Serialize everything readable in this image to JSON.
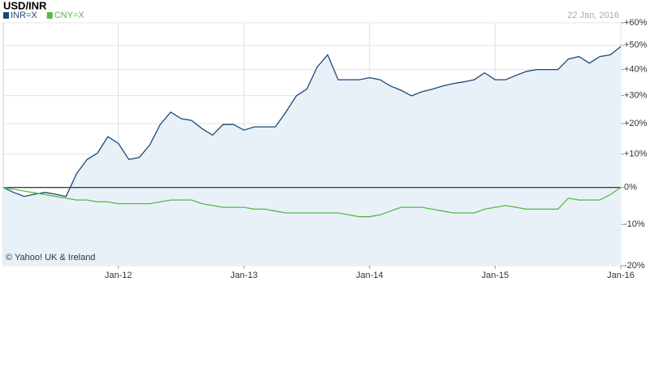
{
  "chart_data": {
    "type": "line",
    "title": "USD/INR",
    "date_label": "22 Jan, 2016",
    "credit": "© Yahoo! UK & Ireland",
    "log_scale": true,
    "grid": true,
    "legend": "top-left",
    "x": [
      null,
      null,
      null,
      null,
      null,
      null,
      null,
      null,
      null,
      null,
      null,
      "Jan-12",
      null,
      null,
      null,
      null,
      null,
      null,
      null,
      null,
      null,
      null,
      null,
      "Jan-13",
      null,
      null,
      null,
      null,
      null,
      null,
      null,
      null,
      null,
      null,
      null,
      "Jan-14",
      null,
      null,
      null,
      null,
      null,
      null,
      null,
      null,
      null,
      null,
      null,
      "Jan-15",
      null,
      null,
      null,
      null,
      null,
      null,
      null,
      null,
      null,
      null,
      null,
      "Jan-16"
    ],
    "ylim": [
      -20,
      60
    ],
    "yticks": [
      {
        "value": -20,
        "label": "-20%"
      },
      {
        "value": -10,
        "label": "-10%"
      },
      {
        "value": 0,
        "label": "0%"
      },
      {
        "value": 10,
        "label": "+10%"
      },
      {
        "value": 20,
        "label": "+20%"
      },
      {
        "value": 30,
        "label": "+30%"
      },
      {
        "value": 40,
        "label": "+40%"
      },
      {
        "value": 50,
        "label": "+50%"
      },
      {
        "value": 60,
        "label": "+60%"
      }
    ],
    "series": [
      {
        "name": "INR=X",
        "color": "#1b4a78",
        "values": [
          0,
          -1.4,
          -2.5,
          -1.9,
          -1.4,
          -1.9,
          -2.5,
          4,
          8.3,
          10.3,
          15.6,
          13.4,
          8.3,
          9,
          12.9,
          19.7,
          24,
          21.7,
          21.1,
          18.3,
          16.1,
          19.7,
          19.7,
          17.8,
          18.9,
          18.9,
          18.9,
          24,
          29.9,
          32.4,
          41,
          46,
          36,
          36,
          36,
          36.8,
          36,
          33.6,
          32,
          29.9,
          31.4,
          32.4,
          33.6,
          34.5,
          35.2,
          36,
          38.7,
          36,
          36,
          37.7,
          39.3,
          40,
          40,
          40,
          44.3,
          45.3,
          42.6,
          45.3,
          46,
          49.5
        ]
      },
      {
        "name": "CNY=X",
        "color": "#55b947",
        "values": [
          0,
          -0.5,
          -1,
          -1.5,
          -2,
          -2.5,
          -3,
          -3.5,
          -3.5,
          -4,
          -4,
          -4.5,
          -4.5,
          -4.5,
          -4.5,
          -4,
          -3.5,
          -3.5,
          -3.5,
          -4.5,
          -5,
          -5.5,
          -5.5,
          -5.5,
          -6,
          -6,
          -6.5,
          -7,
          -7,
          -7,
          -7,
          -7,
          -7,
          -7.5,
          -8,
          -8,
          -7.5,
          -6.5,
          -5.5,
          -5.5,
          -5.5,
          -6,
          -6.5,
          -7,
          -7,
          -7,
          -6,
          -5.5,
          -5,
          -5.5,
          -6,
          -6,
          -6,
          -6,
          -3,
          -3.5,
          -3.5,
          -3.5,
          -2,
          0
        ]
      }
    ]
  }
}
